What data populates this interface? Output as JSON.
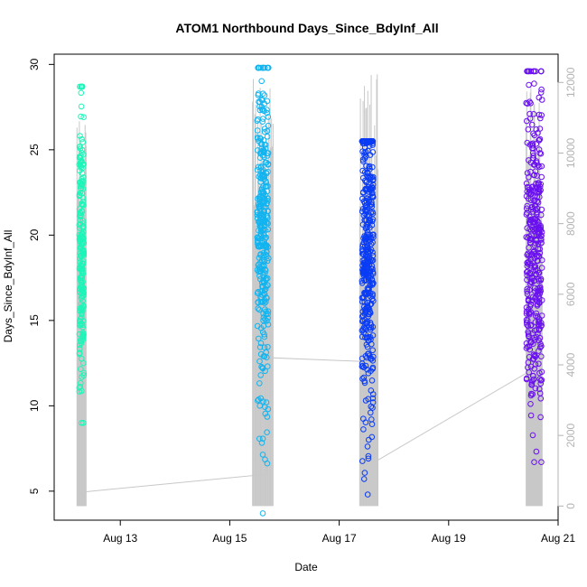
{
  "chart_data": {
    "type": "scatter",
    "title": "ATOM1 Northbound Days_Since_BdyInf_All",
    "xlabel": "Date",
    "ylabel": "Days_Since_BdyInf_All",
    "ylim": [
      3.3,
      30.6
    ],
    "xlim": [
      "2019-08-11 19:00",
      "2019-08-21 00:00"
    ],
    "x_ticks": [
      {
        "label": "Aug 13",
        "date": "2019-08-13"
      },
      {
        "label": "Aug 15",
        "date": "2019-08-15"
      },
      {
        "label": "Aug 17",
        "date": "2019-08-17"
      },
      {
        "label": "Aug 19",
        "date": "2019-08-19"
      },
      {
        "label": "Aug 21",
        "date": "2019-08-21"
      }
    ],
    "y_ticks": [
      5,
      10,
      15,
      20,
      25,
      30
    ],
    "y2_ticks": [
      0,
      2000,
      4000,
      6000,
      8000,
      10000,
      12000
    ],
    "y2_lim": [
      -400,
      12800
    ],
    "colors": {
      "group1": "#1df5b8",
      "group2": "#12b4f0",
      "group3": "#0a3cf5",
      "group4": "#6a10f0",
      "secondary": "#c8c8c8",
      "right_axis": "#b3b3b3"
    },
    "groups": [
      {
        "start": "2019-08-12 06:00",
        "end": "2019-08-12 08:00",
        "mean": 19,
        "sd": 4.4,
        "min": 9.0,
        "max": 28.7,
        "count": 220
      },
      {
        "start": "2019-08-15 12:00",
        "end": "2019-08-15 17:00",
        "mean": 20,
        "sd": 5.0,
        "min": 3.7,
        "max": 29.8,
        "count": 340
      },
      {
        "start": "2019-08-17 10:00",
        "end": "2019-08-17 15:00",
        "mean": 19,
        "sd": 5.0,
        "min": 4.8,
        "max": 25.5,
        "count": 420
      },
      {
        "start": "2019-08-20 10:00",
        "end": "2019-08-20 17:00",
        "mean": 19.5,
        "sd": 5.2,
        "min": 6.7,
        "max": 29.6,
        "count": 380
      }
    ],
    "secondary_series": {
      "name": "",
      "points": [
        {
          "x": "2019-08-12 08:00",
          "y2": 400
        },
        {
          "x": "2019-08-15 16:00",
          "y2": 900
        },
        {
          "x": "2019-08-15 18:30",
          "y2": 4200
        },
        {
          "x": "2019-08-17 09:00",
          "y2": 4100
        },
        {
          "x": "2019-08-17 17:00",
          "y2": 1300
        },
        {
          "x": "2019-08-20 11:00",
          "y2": 3800
        },
        {
          "x": "2019-08-20 17:00",
          "y2": 3900
        }
      ],
      "vertical_ranges": [
        {
          "start": "2019-08-12 05:00",
          "end": "2019-08-12 09:00",
          "low": 0,
          "high": 11000
        },
        {
          "start": "2019-08-15 10:00",
          "end": "2019-08-15 19:00",
          "low": 0,
          "high": 12300
        },
        {
          "start": "2019-08-17 09:00",
          "end": "2019-08-17 17:00",
          "low": 0,
          "high": 12300
        },
        {
          "start": "2019-08-20 10:00",
          "end": "2019-08-20 17:00",
          "low": 0,
          "high": 12000
        }
      ]
    }
  }
}
